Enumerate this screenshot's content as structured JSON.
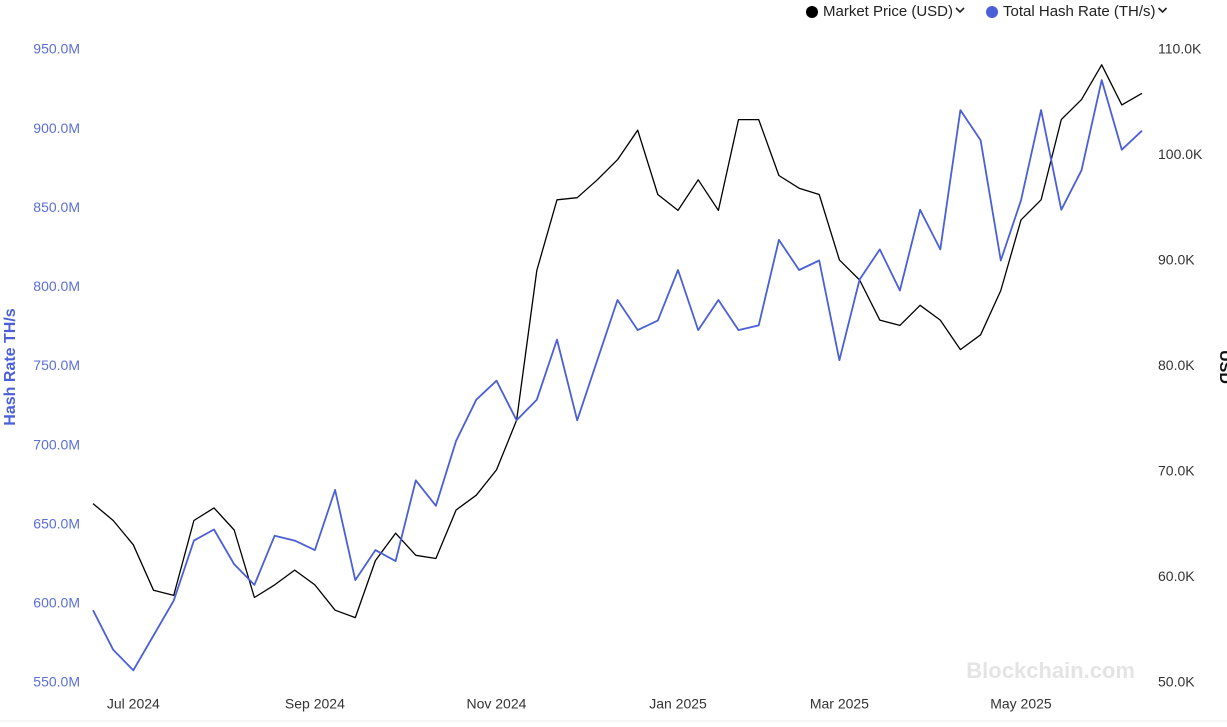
{
  "chart_data": {
    "type": "line",
    "y_axis_label": "Hash Rate TH/s",
    "y2_axis_label": "USD",
    "watermark": "Blockchain.com",
    "categories": [
      null,
      null,
      "Jul 2024",
      null,
      null,
      null,
      null,
      null,
      null,
      null,
      null,
      "Sep 2024",
      null,
      null,
      null,
      null,
      null,
      null,
      null,
      null,
      "Nov 2024",
      null,
      null,
      null,
      null,
      null,
      null,
      null,
      null,
      "Jan 2025",
      null,
      null,
      null,
      null,
      null,
      null,
      null,
      "Mar 2025",
      null,
      null,
      null,
      null,
      null,
      null,
      null,
      null,
      "May 2025",
      null,
      null,
      null,
      null,
      null,
      null
    ],
    "series": [
      {
        "name": "Market Price (USD)",
        "color": "#000000",
        "axis": "y2",
        "values": [
          67000,
          65400,
          63100,
          58800,
          58300,
          65400,
          66600,
          64500,
          58100,
          59300,
          60700,
          59300,
          56900,
          56200,
          61600,
          64200,
          62100,
          61800,
          66400,
          67800,
          70200,
          74900,
          89100,
          95800,
          96000,
          97700,
          99600,
          102400,
          96300,
          94800,
          97700,
          94800,
          103400,
          103400,
          98100,
          96900,
          96300,
          90100,
          88200,
          84400,
          83900,
          85800,
          84400,
          81600,
          83000,
          87200,
          93900,
          95800,
          103400,
          105300,
          108600,
          104800,
          105900
        ]
      },
      {
        "name": "Total Hash Rate (TH/s)",
        "color": "#4a5fd8",
        "values": [
          596000000,
          571000000,
          558000000,
          580000000,
          602000000,
          640000000,
          647000000,
          625000000,
          612000000,
          643000000,
          640000000,
          634000000,
          672000000,
          615000000,
          634000000,
          627000000,
          678000000,
          662000000,
          703000000,
          729000000,
          741000000,
          716000000,
          729000000,
          767000000,
          716000000,
          754000000,
          792000000,
          773000000,
          779000000,
          811000000,
          773000000,
          792000000,
          773000000,
          776000000,
          830000000,
          811000000,
          817000000,
          754000000,
          805000000,
          824000000,
          798000000,
          849000000,
          824000000,
          912000000,
          893000000,
          817000000,
          855000000,
          912000000,
          849000000,
          874000000,
          931000000,
          887000000,
          899000000
        ]
      }
    ],
    "ylim": [
      550000000,
      950000000
    ],
    "yticks": [
      {
        "value": 550000000,
        "label": "550.0M"
      },
      {
        "value": 600000000,
        "label": "600.0M"
      },
      {
        "value": 650000000,
        "label": "650.0M"
      },
      {
        "value": 700000000,
        "label": "700.0M"
      },
      {
        "value": 750000000,
        "label": "750.0M"
      },
      {
        "value": 800000000,
        "label": "800.0M"
      },
      {
        "value": 850000000,
        "label": "850.0M"
      },
      {
        "value": 900000000,
        "label": "900.0M"
      },
      {
        "value": 950000000,
        "label": "950.0M"
      }
    ],
    "y2lim": [
      50000,
      110000
    ],
    "y2ticks": [
      {
        "value": 50000,
        "label": "50.0K"
      },
      {
        "value": 60000,
        "label": "60.0K"
      },
      {
        "value": 70000,
        "label": "70.0K"
      },
      {
        "value": 80000,
        "label": "80.0K"
      },
      {
        "value": 90000,
        "label": "90.0K"
      },
      {
        "value": 100000,
        "label": "100.0K"
      },
      {
        "value": 110000,
        "label": "110.0K"
      }
    ],
    "grid": false
  }
}
